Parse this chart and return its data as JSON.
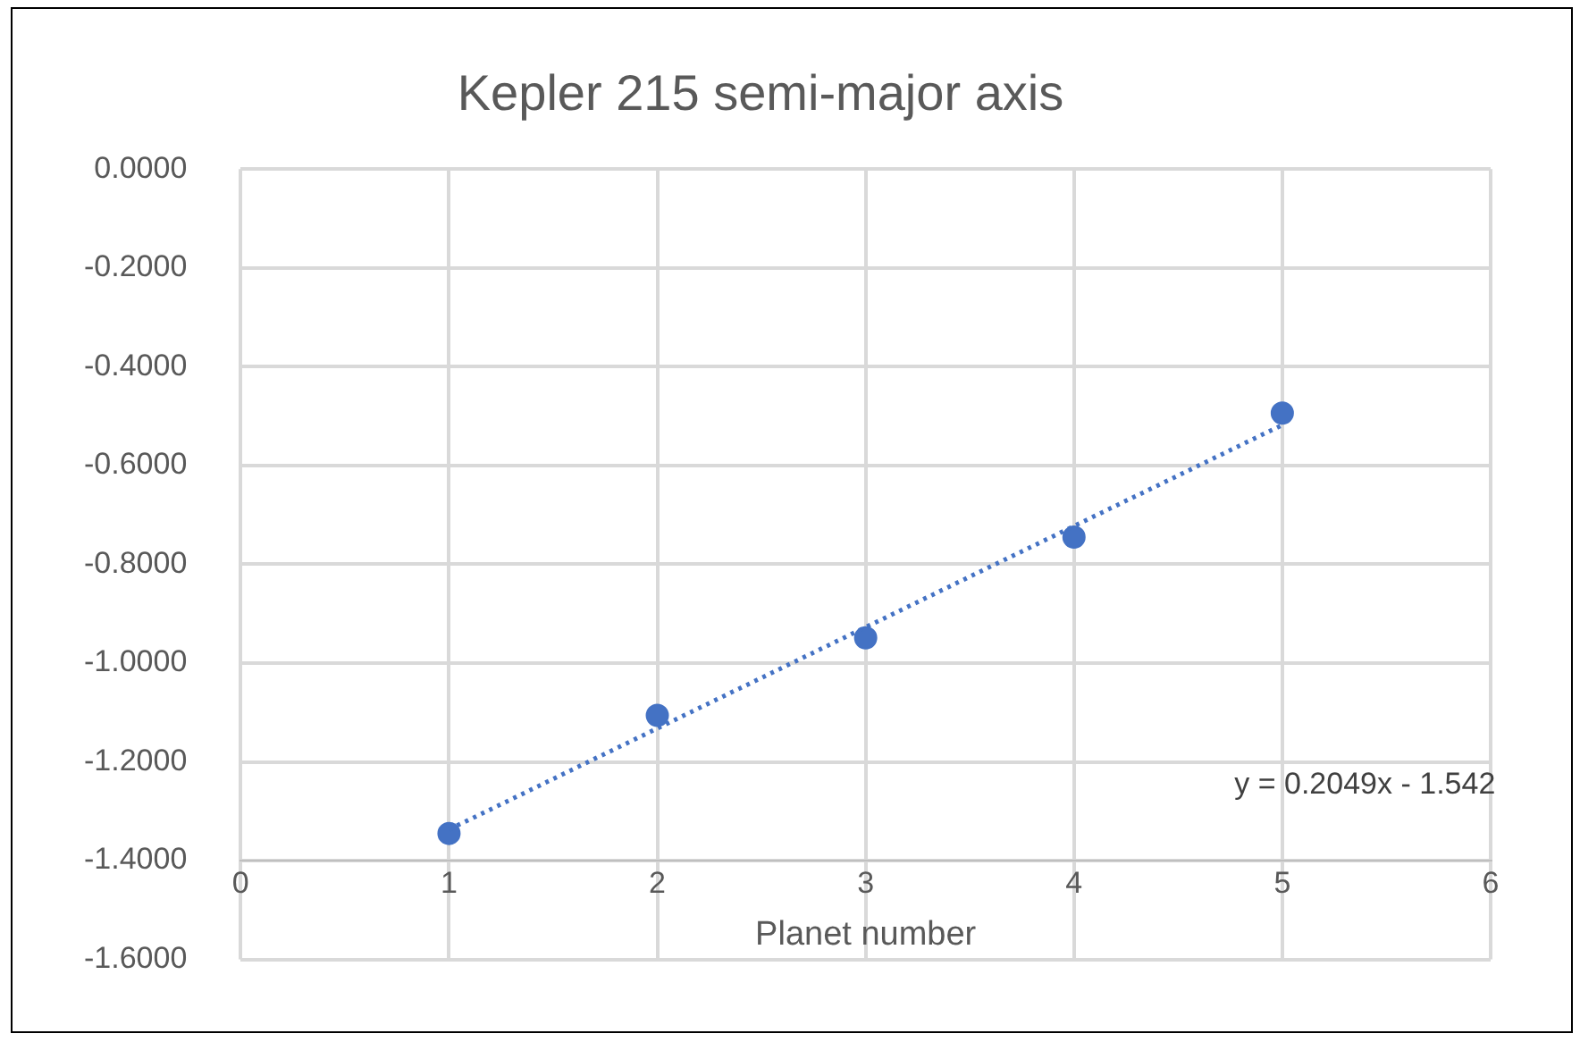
{
  "chart_data": {
    "type": "scatter",
    "title": "Kepler 215 semi-major axis",
    "xlabel": "Planet number",
    "x": [
      1,
      2,
      3,
      4,
      5
    ],
    "series": [
      {
        "color": "#4472c4",
        "values": [
          -1.345,
          -1.106,
          -0.949,
          -0.745,
          -0.494
        ],
        "marker": "circle"
      },
      {
        "type": "line",
        "color": "#4472c4",
        "x": [
          1,
          5
        ],
        "values": [
          -1.337,
          -0.518
        ],
        "line_style": "dotted",
        "marker": "none"
      }
    ],
    "xlim": [
      0,
      6
    ],
    "xticks": [
      0,
      1,
      2,
      3,
      4,
      5,
      6
    ],
    "ylim": [
      -1.6,
      0
    ],
    "yticks": [
      {
        "value": 0,
        "label": "0.0000"
      },
      {
        "value": -0.2,
        "label": "-0.2000"
      },
      {
        "value": -0.4,
        "label": "-0.4000"
      },
      {
        "value": -0.6,
        "label": "-0.6000"
      },
      {
        "value": -0.8,
        "label": "-0.8000"
      },
      {
        "value": -1,
        "label": "-1.0000"
      },
      {
        "value": -1.2,
        "label": "-1.2000"
      },
      {
        "value": -1.4,
        "label": "-1.4000"
      },
      {
        "value": -1.6,
        "label": "-1.6000"
      }
    ],
    "annotations": [
      "y = 0.2049x - 1.542"
    ],
    "grid": true,
    "legend": false
  }
}
